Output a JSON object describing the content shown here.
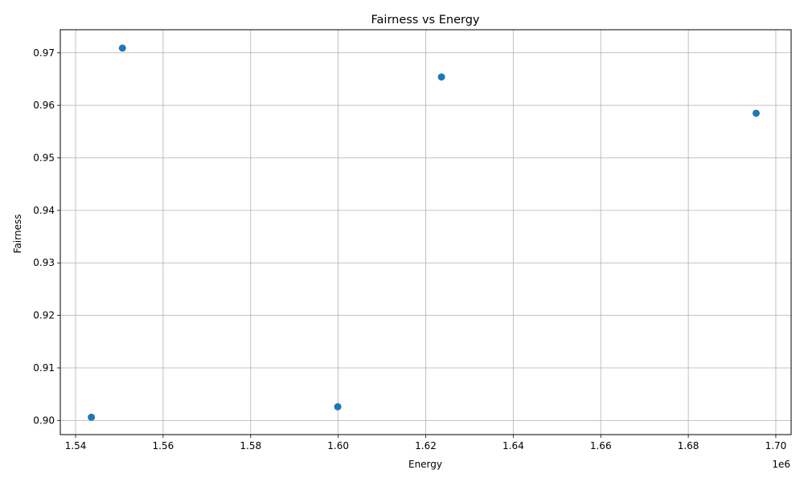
{
  "chart_data": {
    "type": "scatter",
    "title": "Fairness vs Energy",
    "xlabel": "Energy",
    "ylabel": "Fairness",
    "x_offset_text": "1e6",
    "x_scale": 1000000,
    "xlim": [
      1.5365,
      1.7035
    ],
    "ylim": [
      0.8973,
      0.9744
    ],
    "x_ticks": [
      1.54,
      1.56,
      1.58,
      1.6,
      1.62,
      1.64,
      1.66,
      1.68,
      1.7
    ],
    "x_tick_labels": [
      "1.54",
      "1.56",
      "1.58",
      "1.60",
      "1.62",
      "1.64",
      "1.66",
      "1.68",
      "1.70"
    ],
    "y_ticks": [
      0.9,
      0.91,
      0.92,
      0.93,
      0.94,
      0.95,
      0.96,
      0.97
    ],
    "y_tick_labels": [
      "0.90",
      "0.91",
      "0.92",
      "0.93",
      "0.94",
      "0.95",
      "0.96",
      "0.97"
    ],
    "grid": true,
    "marker_color": "#1f77b4",
    "points": [
      {
        "x": 1550700,
        "y": 0.9709
      },
      {
        "x": 1623600,
        "y": 0.9654
      },
      {
        "x": 1695500,
        "y": 0.9585
      },
      {
        "x": 1599900,
        "y": 0.9026
      },
      {
        "x": 1543600,
        "y": 0.9006
      }
    ]
  }
}
